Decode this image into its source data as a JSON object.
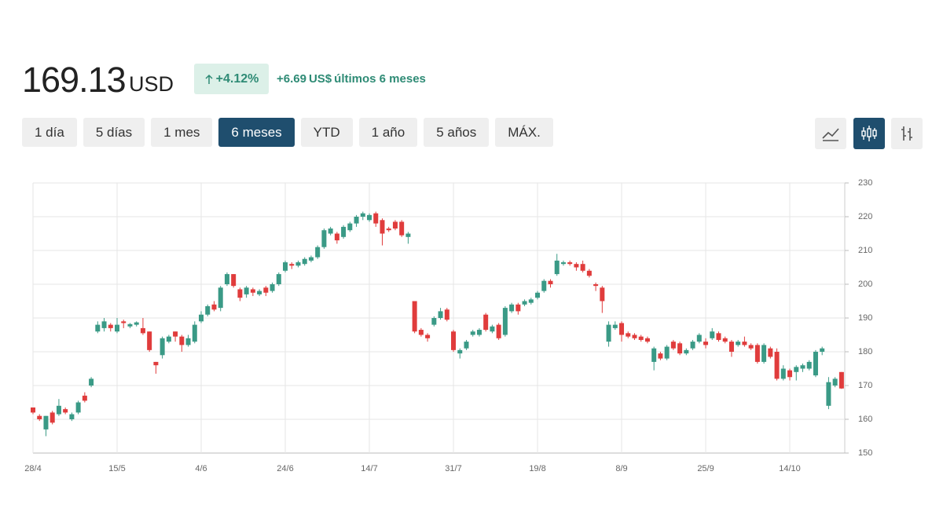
{
  "header": {
    "price": "169.13",
    "currency": "USD",
    "change_pct": "+4.12%",
    "change_abs": "+6.69",
    "change_currency": "US$",
    "period": "últimos 6 meses"
  },
  "ranges": [
    "1 día",
    "5 días",
    "1 mes",
    "6 meses",
    "YTD",
    "1 año",
    "5 años",
    "MÁX."
  ],
  "active_range": 3,
  "chart_data": {
    "type": "candlestick",
    "categories": [
      "28/4",
      null,
      null,
      null,
      null,
      null,
      null,
      null,
      null,
      null,
      null,
      null,
      null,
      "15/5",
      null,
      null,
      null,
      null,
      null,
      null,
      null,
      null,
      null,
      null,
      null,
      null,
      "4/6",
      null,
      null,
      null,
      null,
      null,
      null,
      null,
      null,
      null,
      null,
      null,
      null,
      "24/6",
      null,
      null,
      null,
      null,
      null,
      null,
      null,
      null,
      null,
      null,
      null,
      null,
      "14/7",
      null,
      null,
      null,
      null,
      null,
      null,
      null,
      null,
      null,
      null,
      null,
      null,
      "31/7",
      null,
      null,
      null,
      null,
      null,
      null,
      null,
      null,
      null,
      null,
      null,
      null,
      "19/8",
      null,
      null,
      null,
      null,
      null,
      null,
      null,
      null,
      null,
      null,
      null,
      null,
      "8/9",
      null,
      null,
      null,
      null,
      null,
      null,
      null,
      null,
      null,
      null,
      null,
      null,
      "25/9",
      null,
      null,
      null,
      null,
      null,
      null,
      null,
      null,
      null,
      null,
      null,
      null,
      "14/10",
      null,
      null,
      null,
      null,
      null,
      null,
      null,
      null
    ],
    "open": [
      163.5,
      161,
      157,
      162,
      161.5,
      163,
      160,
      162,
      167,
      170,
      186,
      187,
      188,
      186,
      189,
      187.5,
      188,
      187,
      186,
      177,
      179,
      183,
      186,
      184.5,
      182,
      183,
      189,
      191,
      194,
      193,
      200,
      203,
      198.5,
      197,
      198.5,
      197,
      199,
      198,
      200,
      204,
      206,
      205.5,
      206,
      207,
      208,
      211,
      215,
      215,
      214,
      216,
      218,
      220,
      219,
      221,
      219,
      216.5,
      218.5,
      218.5,
      214,
      195,
      186.5,
      185,
      188,
      190,
      192.5,
      186,
      179.5,
      181,
      185,
      185,
      191,
      186,
      188,
      185,
      192,
      194,
      194,
      194.5,
      196,
      198,
      201,
      203,
      206,
      206.5,
      206,
      206,
      204,
      200,
      199,
      183,
      187,
      188.5,
      185.5,
      185,
      184.5,
      184,
      177,
      179.5,
      178,
      183,
      182.5,
      179.5,
      181,
      183,
      183,
      184,
      185.5,
      184,
      183,
      182,
      183,
      182,
      182,
      177,
      181,
      180,
      172,
      174.5,
      174,
      175,
      175,
      173,
      180,
      164,
      170,
      174
    ],
    "high": [
      163.5,
      161.5,
      161,
      162.5,
      166,
      163.5,
      162,
      165.5,
      168,
      172.5,
      189,
      190,
      188.5,
      190,
      189.5,
      188.5,
      189,
      190,
      186,
      177,
      184.5,
      185,
      186,
      185,
      185,
      189,
      192,
      194,
      195,
      199.5,
      203.5,
      203,
      199,
      199.5,
      199,
      198.5,
      199.5,
      200.5,
      203.5,
      207,
      206.5,
      207,
      208,
      208.5,
      211.5,
      216.5,
      217,
      215.5,
      217.5,
      218.5,
      220.5,
      221.5,
      221,
      221.5,
      219.5,
      217,
      219,
      219,
      215.5,
      195,
      187,
      185.5,
      190.5,
      193,
      193,
      186.5,
      181,
      183.5,
      186.5,
      187,
      191.5,
      188,
      188.5,
      193.5,
      194.5,
      194.5,
      195.5,
      196,
      198,
      201.5,
      201.5,
      209,
      207,
      207,
      206.5,
      207,
      204.5,
      200.5,
      199.5,
      189,
      189,
      189,
      186,
      185.5,
      185,
      184.5,
      181.5,
      180,
      182,
      183.5,
      183,
      181,
      183.5,
      185.5,
      184,
      187,
      186,
      184.5,
      183.5,
      183.5,
      184.5,
      182.5,
      182.5,
      182.5,
      181.5,
      181,
      176,
      175,
      176,
      176.5,
      177.5,
      180.5,
      181.5,
      172.5,
      172.5,
      174
    ],
    "low": [
      161.5,
      159.5,
      155,
      158.5,
      161,
      161.5,
      159.5,
      161.5,
      165,
      169.5,
      185.5,
      186,
      186,
      185.5,
      187,
      187,
      187.5,
      185,
      180,
      173.5,
      178,
      182.5,
      183,
      180,
      181.5,
      182.5,
      188.5,
      190.5,
      192,
      192,
      199.5,
      199,
      195,
      196,
      196.5,
      196.5,
      196.5,
      197.5,
      199.5,
      203.5,
      204.5,
      205,
      205.5,
      206.5,
      207.5,
      210.5,
      214.5,
      212,
      213.5,
      215.5,
      217,
      219,
      218.5,
      217,
      211.5,
      215.5,
      216,
      214,
      212,
      185.5,
      184.5,
      183,
      187.5,
      189.5,
      189,
      180,
      178,
      180.5,
      184.5,
      184.5,
      186,
      185.5,
      183.5,
      184.5,
      191.5,
      191,
      193.5,
      194,
      195.5,
      197.5,
      199,
      202.5,
      205.5,
      205.5,
      204,
      203.5,
      202,
      198,
      191.5,
      181.5,
      186.5,
      183,
      184,
      183.5,
      183,
      182.5,
      174.5,
      177.5,
      177.5,
      180.5,
      179,
      179,
      180.5,
      182.5,
      181,
      183.5,
      183,
      182.5,
      178.5,
      181.5,
      181.5,
      180.5,
      176.5,
      176.5,
      178,
      171.5,
      171.5,
      171.5,
      171.5,
      174,
      174.5,
      172.5,
      179,
      163,
      169.5,
      169
    ],
    "close": [
      162,
      160,
      161,
      159,
      164,
      162,
      161.5,
      165,
      165.5,
      172,
      188,
      189,
      187,
      188,
      188.5,
      188.2,
      188.7,
      185.5,
      180.5,
      176,
      184,
      184.5,
      184.5,
      182,
      184,
      188,
      191,
      193.5,
      192.5,
      199,
      203,
      199.5,
      196,
      199,
      197.5,
      198,
      197.5,
      200,
      203,
      206.5,
      205.5,
      206.5,
      207.5,
      208,
      211,
      216,
      216.5,
      213,
      217,
      218,
      220,
      221,
      220.5,
      218,
      215,
      216,
      216.5,
      214.5,
      215,
      186,
      185,
      184,
      190,
      192,
      189.5,
      180.5,
      180.5,
      183,
      186,
      186.5,
      186.5,
      187.5,
      184,
      193,
      194,
      192,
      195,
      195.5,
      197.5,
      201,
      200,
      207,
      206.5,
      206,
      205,
      204,
      202.5,
      199.5,
      195,
      188,
      188,
      185,
      184.5,
      184,
      183.5,
      183,
      181,
      178,
      181.5,
      181,
      179.5,
      180.5,
      183,
      185,
      182,
      186,
      183.5,
      183,
      180,
      183,
      182,
      181,
      177,
      182,
      178.5,
      172,
      175,
      172.5,
      175.5,
      176,
      177,
      180,
      181,
      171,
      172,
      169.13
    ],
    "ylim": [
      150,
      230
    ],
    "yticks": [
      150,
      160,
      170,
      180,
      190,
      200,
      210,
      220,
      230
    ],
    "grid": true,
    "up_color": "#3a9a86",
    "down_color": "#e03c3c"
  }
}
